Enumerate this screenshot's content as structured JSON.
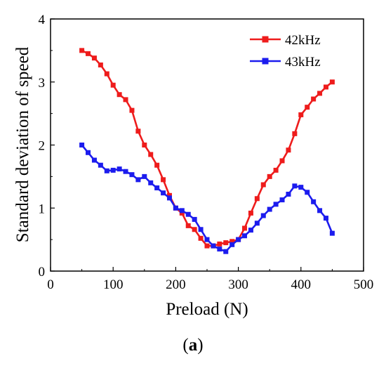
{
  "chart_data": {
    "type": "line",
    "title": "",
    "xlabel": "Preload (N)",
    "ylabel": "Standard deviation of speed",
    "xlim": [
      0,
      500
    ],
    "ylim": [
      0,
      4
    ],
    "xticks": [
      0,
      100,
      200,
      300,
      400,
      500
    ],
    "yticks": [
      0,
      1,
      2,
      3,
      4
    ],
    "grid": false,
    "legend_position": "top-right",
    "series": [
      {
        "name": "42kHz",
        "color": "#ee1c1c",
        "marker": "square",
        "x": [
          50,
          60,
          70,
          80,
          90,
          100,
          110,
          120,
          130,
          140,
          150,
          160,
          170,
          180,
          190,
          200,
          210,
          220,
          230,
          240,
          250,
          260,
          270,
          280,
          290,
          300,
          310,
          320,
          330,
          340,
          350,
          360,
          370,
          380,
          390,
          400,
          410,
          420,
          430,
          440,
          450
        ],
        "y": [
          3.5,
          3.45,
          3.38,
          3.27,
          3.13,
          2.95,
          2.8,
          2.72,
          2.55,
          2.22,
          2.0,
          1.85,
          1.68,
          1.45,
          1.2,
          1.0,
          0.92,
          0.72,
          0.66,
          0.52,
          0.4,
          0.4,
          0.43,
          0.45,
          0.47,
          0.5,
          0.68,
          0.92,
          1.15,
          1.37,
          1.5,
          1.6,
          1.75,
          1.92,
          2.18,
          2.48,
          2.6,
          2.73,
          2.82,
          2.92,
          3.0
        ]
      },
      {
        "name": "43kHz",
        "color": "#1c1cee",
        "marker": "square",
        "x": [
          50,
          60,
          70,
          80,
          90,
          100,
          110,
          120,
          130,
          140,
          150,
          160,
          170,
          180,
          190,
          200,
          210,
          220,
          230,
          240,
          250,
          260,
          270,
          280,
          290,
          300,
          310,
          320,
          330,
          340,
          350,
          360,
          370,
          380,
          390,
          400,
          410,
          420,
          430,
          440,
          450
        ],
        "y": [
          2.0,
          1.88,
          1.76,
          1.68,
          1.59,
          1.6,
          1.62,
          1.58,
          1.53,
          1.45,
          1.5,
          1.4,
          1.32,
          1.24,
          1.16,
          1.0,
          0.96,
          0.9,
          0.82,
          0.66,
          0.5,
          0.4,
          0.35,
          0.31,
          0.42,
          0.5,
          0.56,
          0.65,
          0.76,
          0.88,
          0.98,
          1.06,
          1.13,
          1.22,
          1.35,
          1.33,
          1.25,
          1.1,
          0.96,
          0.84,
          0.6
        ]
      }
    ]
  },
  "caption": {
    "open": "(",
    "letter": "a",
    "close": ")"
  }
}
